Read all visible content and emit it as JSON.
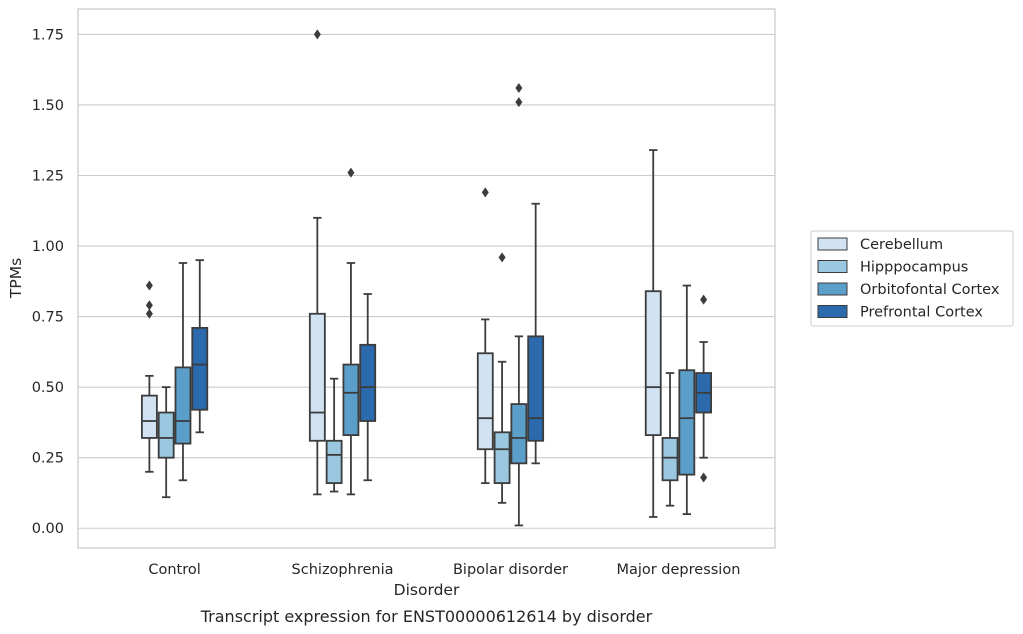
{
  "chart_data": {
    "type": "box",
    "title": "",
    "caption": "Transcript expression for ENST00000612614 by disorder",
    "xlabel": "Disorder",
    "ylabel": "TPMs",
    "ylim": [
      -0.07,
      1.84
    ],
    "yticks": [
      0.0,
      0.25,
      0.5,
      0.75,
      1.0,
      1.25,
      1.5,
      1.75
    ],
    "ytick_labels": [
      "0.00",
      "0.25",
      "0.50",
      "0.75",
      "1.00",
      "1.25",
      "1.50",
      "1.75"
    ],
    "grid": "horizontal",
    "legend_placement": "right",
    "categories": [
      "Control",
      "Schizophrenia",
      "Bipolar disorder",
      "Major depression"
    ],
    "series": [
      {
        "name": "Cerebellum",
        "color": "#d1e2f3",
        "boxes": [
          {
            "whisker_low": 0.2,
            "q1": 0.32,
            "median": 0.38,
            "q3": 0.47,
            "whisker_high": 0.54,
            "outliers": [
              0.76,
              0.79,
              0.86
            ]
          },
          {
            "whisker_low": 0.12,
            "q1": 0.31,
            "median": 0.41,
            "q3": 0.76,
            "whisker_high": 1.1,
            "outliers": [
              1.75
            ]
          },
          {
            "whisker_low": 0.16,
            "q1": 0.28,
            "median": 0.39,
            "q3": 0.62,
            "whisker_high": 0.74,
            "outliers": [
              1.19
            ]
          },
          {
            "whisker_low": 0.04,
            "q1": 0.33,
            "median": 0.5,
            "q3": 0.84,
            "whisker_high": 1.34,
            "outliers": []
          }
        ]
      },
      {
        "name": "Hipppocampus",
        "color": "#9ac8e0",
        "boxes": [
          {
            "whisker_low": 0.11,
            "q1": 0.25,
            "median": 0.32,
            "q3": 0.41,
            "whisker_high": 0.5,
            "outliers": []
          },
          {
            "whisker_low": 0.13,
            "q1": 0.16,
            "median": 0.26,
            "q3": 0.31,
            "whisker_high": 0.53,
            "outliers": []
          },
          {
            "whisker_low": 0.09,
            "q1": 0.16,
            "median": 0.28,
            "q3": 0.34,
            "whisker_high": 0.59,
            "outliers": [
              0.96
            ]
          },
          {
            "whisker_low": 0.08,
            "q1": 0.17,
            "median": 0.25,
            "q3": 0.32,
            "whisker_high": 0.55,
            "outliers": []
          }
        ]
      },
      {
        "name": "Orbitofontal Cortex",
        "color": "#5a9ec9",
        "boxes": [
          {
            "whisker_low": 0.17,
            "q1": 0.3,
            "median": 0.38,
            "q3": 0.57,
            "whisker_high": 0.94,
            "outliers": []
          },
          {
            "whisker_low": 0.12,
            "q1": 0.33,
            "median": 0.48,
            "q3": 0.58,
            "whisker_high": 0.94,
            "outliers": [
              1.26
            ]
          },
          {
            "whisker_low": 0.01,
            "q1": 0.23,
            "median": 0.32,
            "q3": 0.44,
            "whisker_high": 0.68,
            "outliers": [
              1.51,
              1.56
            ]
          },
          {
            "whisker_low": 0.05,
            "q1": 0.19,
            "median": 0.39,
            "q3": 0.56,
            "whisker_high": 0.86,
            "outliers": []
          }
        ]
      },
      {
        "name": "Prefrontal Cortex",
        "color": "#2a6aad",
        "boxes": [
          {
            "whisker_low": 0.34,
            "q1": 0.42,
            "median": 0.58,
            "q3": 0.71,
            "whisker_high": 0.95,
            "outliers": []
          },
          {
            "whisker_low": 0.17,
            "q1": 0.38,
            "median": 0.5,
            "q3": 0.65,
            "whisker_high": 0.83,
            "outliers": []
          },
          {
            "whisker_low": 0.23,
            "q1": 0.31,
            "median": 0.39,
            "q3": 0.68,
            "whisker_high": 1.15,
            "outliers": []
          },
          {
            "whisker_low": 0.25,
            "q1": 0.41,
            "median": 0.48,
            "q3": 0.55,
            "whisker_high": 0.66,
            "outliers": [
              0.18,
              0.81
            ]
          }
        ]
      }
    ]
  }
}
